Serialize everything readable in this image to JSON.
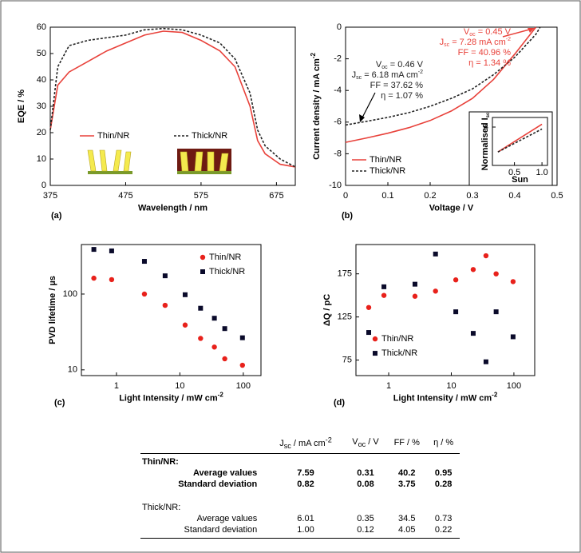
{
  "chart_data": [
    {
      "type": "line",
      "panel_label": "(a)",
      "xlabel": "Wavelength / nm",
      "ylabel": "EQE / %",
      "x": [
        375,
        385,
        400,
        425,
        450,
        475,
        500,
        525,
        550,
        575,
        600,
        620,
        640,
        650,
        660,
        680,
        700
      ],
      "series": [
        {
          "name": "Thin/NR",
          "color": "#e8413a",
          "dash": false,
          "values": [
            21,
            38,
            43,
            47,
            51,
            54,
            57,
            58.5,
            58,
            55,
            51,
            45,
            30,
            17,
            12,
            8,
            7
          ]
        },
        {
          "name": "Thick/NR",
          "color": "#222222",
          "dash": true,
          "values": [
            21,
            45,
            53,
            55,
            56,
            57,
            59,
            59.5,
            59,
            57,
            54,
            48,
            35,
            21,
            15,
            10,
            7
          ]
        }
      ],
      "xlim": [
        375,
        700
      ],
      "xticks": [
        375,
        475,
        575,
        675
      ],
      "ylim": [
        0,
        60
      ],
      "yticks": [
        0,
        10,
        20,
        30,
        40,
        50,
        60
      ],
      "legend": "center"
    },
    {
      "type": "line",
      "panel_label": "(b)",
      "xlabel": "Voltage / V",
      "ylabel": [
        {
          "t": "Current density / mA cm"
        },
        {
          "sup": "-2"
        }
      ],
      "x": [
        0,
        0.05,
        0.1,
        0.15,
        0.2,
        0.25,
        0.3,
        0.35,
        0.4,
        0.45,
        0.46
      ],
      "series": [
        {
          "name": "Thin/NR",
          "color": "#e8413a",
          "dash": false,
          "values": [
            -7.28,
            -7.0,
            -6.7,
            -6.35,
            -5.9,
            -5.3,
            -4.5,
            -3.3,
            -1.7,
            0,
            null
          ]
        },
        {
          "name": "Thick/NR",
          "color": "#222222",
          "dash": true,
          "values": [
            -6.18,
            -5.95,
            -5.7,
            -5.4,
            -5.0,
            -4.5,
            -3.9,
            -3.0,
            -1.9,
            -0.45,
            0
          ]
        }
      ],
      "xlim": [
        0,
        0.5
      ],
      "xticks": [
        0,
        0.1,
        0.2,
        0.3,
        0.4,
        0.5
      ],
      "ylim": [
        -10,
        0
      ],
      "yticks": [
        -10,
        -8,
        -6,
        -4,
        -2,
        0
      ],
      "legend": "lower left",
      "annotations": [
        {
          "color": "#e8413a",
          "lines": [
            [
              {
                "t": "V"
              },
              {
                "sub": "oc"
              },
              {
                "t": " = 0.45 V"
              }
            ],
            [
              {
                "t": "J"
              },
              {
                "sub": "sc"
              },
              {
                "t": " = 7.28 mA cm"
              },
              {
                "sup": "-2"
              }
            ],
            [
              {
                "t": "FF = 40.96 %"
              }
            ],
            [
              {
                "t": "η = 1.34 %"
              }
            ]
          ]
        },
        {
          "color": "#222222",
          "lines": [
            [
              {
                "t": "V"
              },
              {
                "sub": "oc"
              },
              {
                "t": " = 0.46 V"
              }
            ],
            [
              {
                "t": "J"
              },
              {
                "sub": "sc"
              },
              {
                "t": " = 6.18 mA cm"
              },
              {
                "sup": "-2"
              }
            ],
            [
              {
                "t": "FF = 37.62 %"
              }
            ],
            [
              {
                "t": "η = 1.07 %"
              }
            ]
          ]
        }
      ],
      "inset": {
        "type": "line",
        "xlabel": "Sun",
        "ylabel": [
          {
            "t": "Normalised I"
          },
          {
            "sub": "sc"
          }
        ],
        "x": [
          0.2,
          1.0
        ],
        "series": [
          {
            "color": "#e8413a",
            "dash": false,
            "values": [
              1.4,
              4.3
            ]
          },
          {
            "color": "#222222",
            "dash": true,
            "values": [
              1.4,
              3.8
            ]
          }
        ],
        "xlim": [
          0.1,
          1.1
        ],
        "xticks": [
          {
            "value": 0.5,
            "label": "0.5"
          },
          {
            "value": 1,
            "label": "1.0"
          }
        ],
        "ylim": [
          0,
          5
        ],
        "yticks": [
          4
        ]
      }
    },
    {
      "type": "scatter",
      "panel_label": "(c)",
      "xlabel": [
        {
          "t": "Light Intensity  / mW cm"
        },
        {
          "sup": "-2"
        }
      ],
      "ylabel": "PVD lifetime / µs",
      "x": [
        0.44,
        0.84,
        2.76,
        5.85,
        12.1,
        21.2,
        35,
        51,
        97
      ],
      "series": [
        {
          "name": "Thin/NR",
          "color": "#e8211b",
          "marker": "circle",
          "values": [
            162,
            155,
            100,
            71,
            39,
            26,
            20,
            14,
            11.5
          ]
        },
        {
          "name": "Thick/NR",
          "color": "#0a0a2a",
          "marker": "square",
          "values": [
            388,
            371,
            270,
            174,
            98,
            65,
            48,
            35,
            26.5
          ]
        }
      ],
      "xlog": true,
      "ylog": true,
      "xlim": [
        0.28,
        190
      ],
      "xticks": [
        1,
        10,
        100
      ],
      "ylim": [
        8.4,
        450
      ],
      "yticks": [
        10,
        100
      ],
      "legend": "upper right"
    },
    {
      "type": "scatter",
      "panel_label": "(d)",
      "xlabel": [
        {
          "t": "Light Intensity  / mW cm"
        },
        {
          "sup": "-2"
        }
      ],
      "ylabel": "ΔQ / pC",
      "x": [
        0.48,
        0.84,
        2.63,
        5.6,
        11.8,
        22.4,
        35.8,
        52,
        97
      ],
      "series": [
        {
          "name": "Thin/NR",
          "color": "#e8211b",
          "marker": "circle",
          "values": [
            136,
            150,
            149,
            155,
            168,
            180,
            196,
            175,
            166
          ]
        },
        {
          "name": "Thick/NR",
          "color": "#0a0a2a",
          "marker": "square",
          "values": [
            107,
            160,
            163,
            198,
            131,
            106,
            73,
            131,
            102
          ]
        }
      ],
      "xlog": true,
      "xlim": [
        0.3,
        215
      ],
      "xticks": [
        1,
        10,
        100
      ],
      "ylim": [
        57,
        209
      ],
      "yticks": [
        75,
        125,
        175
      ],
      "legend": "center left"
    }
  ],
  "table": {
    "header": [
      [
        {
          "t": "J"
        },
        {
          "sub": "sc"
        },
        {
          "t": " / mA cm"
        },
        {
          "sup": "-2"
        }
      ],
      [
        {
          "t": "V"
        },
        {
          "sub": "oc"
        },
        {
          "t": " / V"
        }
      ],
      [
        {
          "t": "FF / %"
        }
      ],
      [
        {
          "t": "η / %"
        }
      ]
    ],
    "groups": [
      {
        "title": "Thin/NR:",
        "bold": true,
        "rows": [
          [
            "Average values",
            "7.59",
            "0.31",
            "40.2",
            "0.95"
          ],
          [
            "Standard deviation",
            "0.82",
            "0.08",
            "3.75",
            "0.28"
          ]
        ]
      },
      {
        "title": "Thick/NR:",
        "bold": false,
        "rows": [
          [
            "Average values",
            "6.01",
            "0.35",
            "34.5",
            "0.73"
          ],
          [
            "Standard deviation",
            "1.00",
            "0.12",
            "4.05",
            "0.22"
          ]
        ]
      }
    ]
  }
}
